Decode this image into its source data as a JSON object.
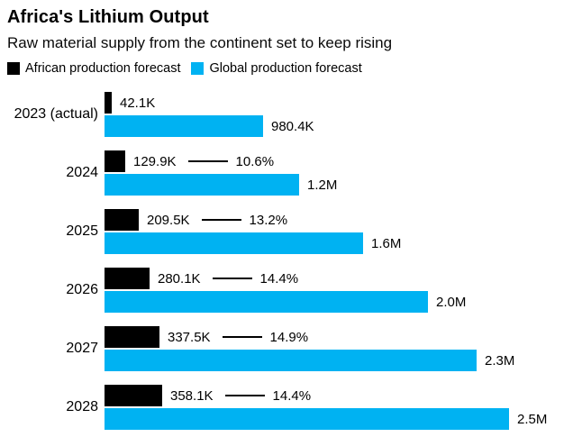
{
  "header": {
    "title": "Africa's Lithium Output",
    "subtitle": "Raw material supply from the continent set to keep rising"
  },
  "legend": [
    {
      "label": "African production forecast",
      "color": "#000000"
    },
    {
      "label": "Global production forecast",
      "color": "#00b2f2"
    }
  ],
  "colors": {
    "african": "#000000",
    "global": "#00b2f2"
  },
  "chart_data": {
    "type": "bar",
    "orientation": "horizontal",
    "title": "Africa's Lithium Output",
    "subtitle": "Raw material supply from the continent set to keep rising",
    "categories": [
      "2023 (actual)",
      "2024",
      "2025",
      "2026",
      "2027",
      "2028"
    ],
    "series": [
      {
        "name": "African production forecast",
        "color": "#000000",
        "values": [
          42100,
          129900,
          209500,
          280100,
          337500,
          358100
        ],
        "labels": [
          "42.1K",
          "129.9K",
          "209.5K",
          "280.1K",
          "337.5K",
          "358.1K"
        ]
      },
      {
        "name": "Global production forecast",
        "color": "#00b2f2",
        "values": [
          980400,
          1200000,
          1600000,
          2000000,
          2300000,
          2500000
        ],
        "labels": [
          "980.4K",
          "1.2M",
          "1.6M",
          "2.0M",
          "2.3M",
          "2.5M"
        ]
      }
    ],
    "african_share_of_global": [
      null,
      "10.6%",
      "13.2%",
      "14.4%",
      "14.9%",
      "14.4%"
    ],
    "xlim": [
      0,
      2500000
    ],
    "grid": false,
    "legend_position": "top",
    "value_labels_shown": true
  }
}
